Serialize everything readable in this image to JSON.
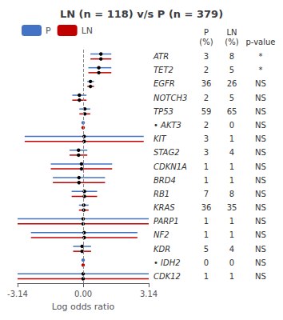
{
  "chart_data": {
    "type": "forest",
    "title": "LN (n = 118) v/s P (n = 379)",
    "xlabel": "Log odds ratio",
    "categories": [
      "ATR",
      "TET2",
      "EGFR",
      "NOTCH3",
      "TP53",
      "• AKT3",
      "KIT",
      "STAG2",
      "CDKN1A",
      "BRD4",
      "RB1",
      "KRAS",
      "PARP1",
      "NF2",
      "KDR",
      "• IDH2",
      "CDK12"
    ],
    "series": [
      {
        "name": "P",
        "color": "#4472C4",
        "values": [
          0.85,
          0.75,
          0.35,
          -0.18,
          0.08,
          0.0,
          0.05,
          -0.22,
          -0.08,
          -0.2,
          0.06,
          0.03,
          0.0,
          0.05,
          -0.05,
          0.0,
          0.0
        ],
        "lo": [
          0.35,
          0.25,
          0.2,
          -0.52,
          -0.18,
          0.0,
          -2.8,
          -0.65,
          -1.55,
          -1.45,
          -0.55,
          -0.2,
          -3.14,
          -2.5,
          -0.48,
          0.0,
          -3.14
        ],
        "hi": [
          1.35,
          1.35,
          0.52,
          0.16,
          0.34,
          0.0,
          2.9,
          0.2,
          1.39,
          1.05,
          0.67,
          0.26,
          3.14,
          2.6,
          0.38,
          0.0,
          3.14
        ]
      },
      {
        "name": "LN",
        "color": "#C00000",
        "values": [
          0.85,
          0.75,
          0.35,
          -0.18,
          0.08,
          0.0,
          0.05,
          -0.22,
          -0.08,
          -0.2,
          0.06,
          0.03,
          0.0,
          0.05,
          -0.05,
          0.0,
          0.0
        ],
        "lo": [
          0.35,
          0.25,
          0.2,
          -0.52,
          -0.18,
          0.0,
          -2.8,
          -0.65,
          -1.55,
          -1.45,
          -0.55,
          -0.2,
          -3.14,
          -2.5,
          -0.48,
          0.0,
          -3.14
        ],
        "hi": [
          1.35,
          1.35,
          0.52,
          0.16,
          0.34,
          0.0,
          2.9,
          0.2,
          1.39,
          1.05,
          0.67,
          0.26,
          3.14,
          2.6,
          0.38,
          0.0,
          3.14
        ]
      }
    ],
    "xlim": [
      -3.14,
      3.14
    ],
    "xticks": [
      -3.14,
      {
        "value": 0,
        "label": "0.00"
      },
      3.14
    ],
    "vline": 0,
    "table": [
      {
        "header": [
          "P",
          "(%)"
        ],
        "values": [
          3,
          2,
          36,
          2,
          59,
          2,
          3,
          3,
          1,
          1,
          7,
          36,
          1,
          1,
          5,
          0,
          1
        ]
      },
      {
        "header": [
          "LN",
          "(%)"
        ],
        "values": [
          8,
          5,
          26,
          5,
          65,
          0,
          1,
          4,
          1,
          1,
          8,
          35,
          1,
          1,
          4,
          0,
          1
        ]
      },
      {
        "header": [
          "p-value"
        ],
        "values": [
          "*",
          "*",
          "NS",
          "NS",
          "NS",
          "NS",
          "NS",
          "NS",
          "NS",
          "NS",
          "NS",
          "NS",
          "NS",
          "NS",
          "NS",
          "NS",
          "NS"
        ]
      }
    ],
    "legend": "upper left",
    "grid": false
  }
}
